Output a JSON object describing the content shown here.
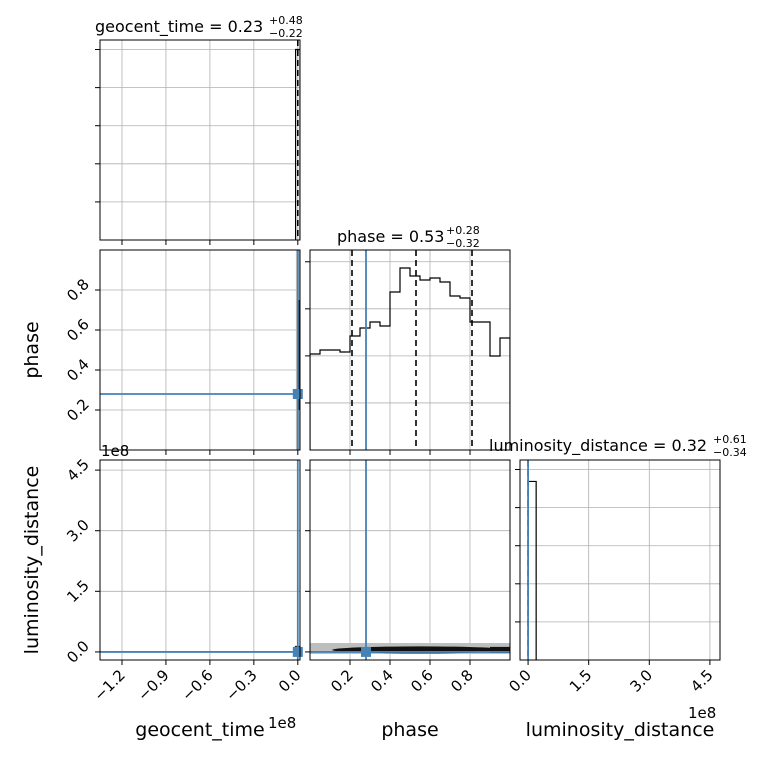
{
  "chart_data": {
    "type": "corner",
    "parameters": [
      "geocent_time",
      "phase",
      "luminosity_distance"
    ],
    "truth": {
      "geocent_time": 0.0,
      "phase": 0.28,
      "luminosity_distance": 0.0
    },
    "titles": {
      "geocent_time": {
        "name": "geocent_time",
        "median": "0.23",
        "plus": "+0.48",
        "minus": "−0.22"
      },
      "phase": {
        "name": "phase",
        "median": "0.53",
        "plus": "+0.28",
        "minus": "−0.32"
      },
      "luminosity_distance": {
        "name": "luminosity_distance",
        "median": "0.32",
        "plus": "+0.61",
        "minus": "−0.34"
      }
    },
    "axes_labels": {
      "x_geocent_time": "geocent_time",
      "x_phase": "phase",
      "x_luminosity_distance": "luminosity_distance",
      "y_phase": "phase",
      "y_luminosity_distance": "luminosity_distance"
    },
    "offsets": {
      "geocent_time_x": "1e8",
      "luminosity_distance_x": "1e8",
      "luminosity_distance_y": "1e8"
    },
    "ranges": {
      "geocent_time": [
        -135000000,
        1500000
      ],
      "phase": [
        0.0,
        1.0
      ],
      "luminosity_distance": [
        -20000000,
        475000000
      ]
    },
    "ticks": {
      "geocent_time": [
        {
          "v": -120000000,
          "label": "−1.2"
        },
        {
          "v": -90000000,
          "label": "−0.9"
        },
        {
          "v": -60000000,
          "label": "−0.6"
        },
        {
          "v": -30000000,
          "label": "−0.3"
        },
        {
          "v": 0,
          "label": "0.0"
        }
      ],
      "phase": [
        {
          "v": 0.2,
          "label": "0.2"
        },
        {
          "v": 0.4,
          "label": "0.4"
        },
        {
          "v": 0.6,
          "label": "0.6"
        },
        {
          "v": 0.8,
          "label": "0.8"
        }
      ],
      "luminosity_distance": [
        {
          "v": 0,
          "label": "0.0"
        },
        {
          "v": 150000000,
          "label": "1.5"
        },
        {
          "v": 300000000,
          "label": "3.0"
        },
        {
          "v": 450000000,
          "label": "4.5"
        }
      ]
    },
    "hist_geocent_time": {
      "edges": [
        -1500000,
        0,
        1500000
      ],
      "heights": [
        1.0,
        1.0
      ],
      "ymax": 1.05,
      "quantiles": [
        0
      ]
    },
    "hist_phase": {
      "edges": [
        0.0,
        0.05,
        0.1,
        0.15,
        0.2,
        0.25,
        0.3,
        0.35,
        0.4,
        0.45,
        0.5,
        0.55,
        0.6,
        0.65,
        0.7,
        0.75,
        0.8,
        0.85,
        0.9,
        0.95,
        1.0
      ],
      "heights": [
        0.48,
        0.5,
        0.5,
        0.49,
        0.57,
        0.61,
        0.64,
        0.62,
        0.79,
        0.91,
        0.87,
        0.85,
        0.86,
        0.84,
        0.77,
        0.76,
        0.64,
        0.64,
        0.47,
        0.56
      ],
      "ymax": 1.0,
      "quantiles": [
        0.21,
        0.53,
        0.81
      ]
    },
    "hist_luminosity_distance": {
      "edges": [
        0,
        20000000
      ],
      "heights": [
        1.0
      ],
      "ymax": 1.12,
      "quantiles": [
        0
      ]
    },
    "grid": true
  }
}
